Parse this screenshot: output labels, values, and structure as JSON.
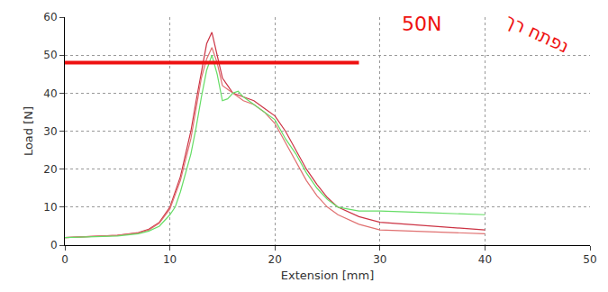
{
  "chart_data": {
    "type": "line",
    "x_label": "Extension [mm]",
    "y_label": "Load [N]",
    "xlim": [
      0,
      50
    ],
    "ylim": [
      0,
      60
    ],
    "xticks": [
      0,
      10,
      20,
      30,
      40,
      50
    ],
    "yticks": [
      0,
      10,
      20,
      30,
      40,
      50,
      60
    ],
    "grid": true,
    "series": [
      {
        "color": "#cc3344",
        "x": [
          0,
          3,
          5,
          7,
          8,
          9,
          10,
          11,
          12,
          12.5,
          13,
          13.5,
          14,
          14.5,
          15,
          16,
          17,
          18,
          19,
          20,
          21,
          22,
          23,
          24,
          25,
          26,
          28,
          30,
          35,
          40
        ],
        "values": [
          2,
          2.3,
          2.6,
          3.3,
          4.2,
          6,
          10,
          18,
          30,
          38,
          46,
          53,
          56,
          50,
          44,
          40,
          39,
          38,
          36,
          34,
          30,
          25,
          20,
          16,
          12.5,
          10,
          7.5,
          6,
          5,
          4
        ]
      },
      {
        "color": "#e07070",
        "x": [
          0,
          3,
          5,
          7,
          8,
          9,
          10,
          11,
          12,
          12.5,
          13,
          13.5,
          14,
          14.5,
          15,
          16,
          17,
          18,
          19,
          20,
          21,
          22,
          23,
          24,
          25,
          26,
          28,
          30,
          35,
          40
        ],
        "values": [
          2,
          2.3,
          2.6,
          3.2,
          4,
          5.8,
          9.5,
          17,
          28,
          36,
          44,
          49,
          52,
          48,
          42,
          40,
          38,
          37,
          35,
          32,
          27,
          22,
          17,
          13,
          10,
          8,
          5.5,
          4,
          3.5,
          3
        ]
      },
      {
        "color": "#66dd66",
        "x": [
          0,
          3,
          5,
          7,
          8,
          9,
          10,
          10.5,
          11,
          12,
          12.5,
          13,
          13.5,
          14,
          14.5,
          15,
          15.5,
          16,
          16.5,
          17,
          18,
          19,
          20,
          21,
          22,
          23,
          24,
          25,
          26,
          28,
          30,
          35,
          40
        ],
        "values": [
          2,
          2.2,
          2.4,
          3,
          3.7,
          5,
          8,
          10,
          14,
          24,
          31,
          39,
          46,
          50,
          45,
          38,
          38.5,
          40,
          40.5,
          39,
          37,
          35,
          33,
          28,
          24,
          19,
          15,
          12,
          10,
          9,
          9,
          8.5,
          8
        ]
      },
      {
        "color": "#ee1111",
        "line_style": "thick",
        "x": [
          0,
          28
        ],
        "values": [
          48,
          48
        ]
      }
    ],
    "annotations": [
      {
        "text": "50N",
        "color": "#ee1111"
      },
      {
        "text": "נפתח רך",
        "color": "#ee1111"
      }
    ]
  }
}
